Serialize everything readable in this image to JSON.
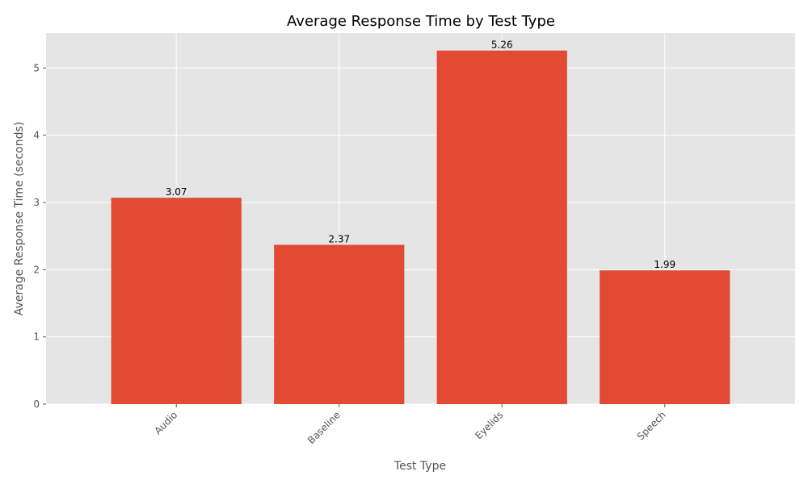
{
  "chart_data": {
    "type": "bar",
    "title": "Average Response Time by Test Type",
    "xlabel": "Test Type",
    "ylabel": "Average Response Time (seconds)",
    "categories": [
      "Audio",
      "Baseline",
      "Eyelids",
      "Speech"
    ],
    "values": [
      3.07,
      2.37,
      5.26,
      1.99
    ],
    "data_labels": [
      "3.07",
      "2.37",
      "5.26",
      "1.99"
    ],
    "yticks": [
      0,
      1,
      2,
      3,
      4,
      5
    ],
    "ylim": [
      0,
      5.52
    ],
    "grid": true,
    "colors": {
      "bar": "#e24a33",
      "plot_background": "#e5e5e5"
    }
  }
}
